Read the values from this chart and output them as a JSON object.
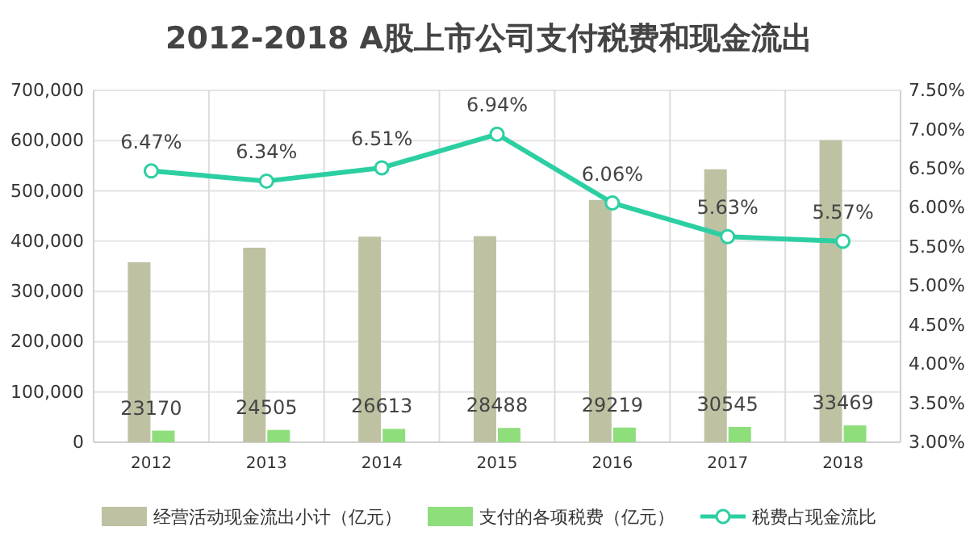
{
  "chart_data": {
    "type": "bar",
    "title": "2012-2018 A股上市公司支付税费和现金流出",
    "categories": [
      "2012",
      "2013",
      "2014",
      "2015",
      "2016",
      "2017",
      "2018"
    ],
    "series": [
      {
        "name": "经营活动现金流出小计（亿元）",
        "color": "#bfc1a3",
        "values": [
          358000,
          387000,
          409000,
          410000,
          482000,
          543000,
          601000
        ]
      },
      {
        "name": "支付的各项税费（亿元）",
        "color": "#8ede7c",
        "values": [
          23170,
          24505,
          26613,
          28488,
          29219,
          30545,
          33469
        ],
        "value_labels": [
          "23170",
          "24505",
          "26613",
          "28488",
          "29219",
          "30545",
          "33469"
        ]
      },
      {
        "name": "税费占现金流比",
        "type": "line",
        "axis": "y2",
        "color": "#2ccfa2",
        "marker": "circle",
        "values": [
          6.47,
          6.34,
          6.51,
          6.94,
          6.06,
          5.63,
          5.57
        ],
        "value_labels": [
          "6.47%",
          "6.34%",
          "6.51%",
          "6.94%",
          "6.06%",
          "5.63%",
          "5.57%"
        ]
      }
    ],
    "ylim": [
      0,
      700000
    ],
    "yticks": [
      0,
      {
        "value": 100000,
        "label": "100,000"
      },
      {
        "value": 200000,
        "label": "200,000"
      },
      {
        "value": 300000,
        "label": "300,000"
      },
      {
        "value": 400000,
        "label": "400,000"
      },
      {
        "value": 500000,
        "label": "500,000"
      },
      {
        "value": 600000,
        "label": "600,000"
      },
      {
        "value": 700000,
        "label": "700,000"
      }
    ],
    "y2lim": [
      3,
      7.5
    ],
    "y2ticks": [
      {
        "value": 3,
        "label": "3.00%"
      },
      {
        "value": 3.5,
        "label": "3.50%"
      },
      {
        "value": 4,
        "label": "4.00%"
      },
      {
        "value": 4.5,
        "label": "4.50%"
      },
      {
        "value": 5,
        "label": "5.00%"
      },
      {
        "value": 5.5,
        "label": "5.50%"
      },
      {
        "value": 6,
        "label": "6.00%"
      },
      {
        "value": 6.5,
        "label": "6.50%"
      },
      {
        "value": 7,
        "label": "7.00%"
      },
      {
        "value": 7.5,
        "label": "7.50%"
      }
    ],
    "grid": true,
    "legend": "bottom"
  }
}
